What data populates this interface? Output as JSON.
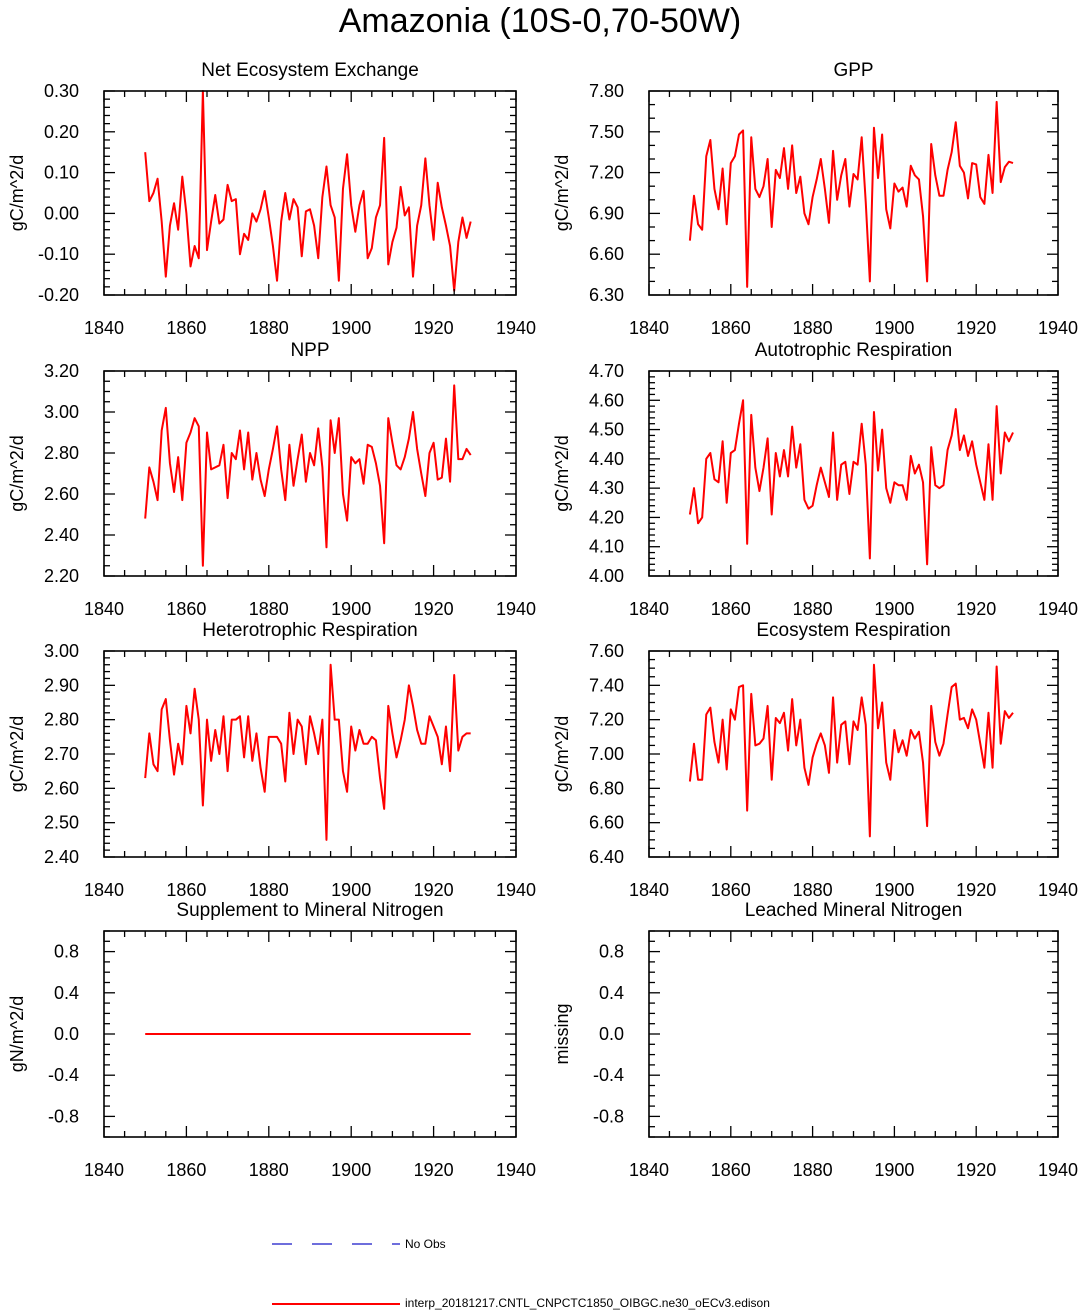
{
  "title": "Amazonia (10S-0,70-50W)",
  "legend": [
    {
      "label": "No Obs",
      "color": "#3f3fd0",
      "style": "dashed"
    },
    {
      "label": "interp_20181217.CNTL_CNPCTC1850_OIBGC.ne30_oECv3.edison",
      "color": "#ff0000",
      "style": "solid"
    }
  ],
  "chart_data": [
    {
      "type": "line",
      "title": "Net Ecosystem Exchange",
      "ylabel": "gC/m^2/d",
      "xlim": [
        1840,
        1940
      ],
      "xticks": [
        1840,
        1860,
        1880,
        1900,
        1920,
        1940
      ],
      "xtick_labels": [
        "1840",
        "1860",
        "1880",
        "1900",
        "1920",
        "1940"
      ],
      "ylim": [
        -0.2,
        0.3
      ],
      "yticks": [
        -0.2,
        -0.1,
        0,
        0.1,
        0.2,
        0.3
      ],
      "ytick_labels": [
        "-0.20",
        "-0.10",
        "0.00",
        "0.10",
        "0.20",
        "0.30"
      ],
      "series": [
        {
          "x_start": 1850,
          "x_step": 1,
          "color": "#ff0000",
          "values": [
            0.15,
            0.03,
            0.05,
            0.085,
            -0.02,
            -0.155,
            -0.03,
            0.025,
            -0.04,
            0.09,
            0.0,
            -0.13,
            -0.08,
            -0.11,
            0.3,
            -0.09,
            -0.02,
            0.045,
            -0.025,
            -0.015,
            0.07,
            0.03,
            0.035,
            -0.1,
            -0.05,
            -0.065,
            0.0,
            -0.02,
            0.01,
            0.055,
            -0.01,
            -0.08,
            -0.165,
            -0.02,
            0.05,
            -0.015,
            0.035,
            0.015,
            -0.105,
            0.005,
            0.01,
            -0.03,
            -0.11,
            0.04,
            0.115,
            0.02,
            -0.01,
            -0.165,
            0.06,
            0.145,
            0.02,
            -0.045,
            0.02,
            0.055,
            -0.11,
            -0.085,
            -0.01,
            0.02,
            0.185,
            -0.125,
            -0.07,
            -0.035,
            0.065,
            -0.005,
            0.015,
            -0.155,
            -0.03,
            0.02,
            0.135,
            0.02,
            -0.065,
            0.075,
            0.015,
            -0.03,
            -0.08,
            -0.19,
            -0.07,
            -0.01,
            -0.06,
            -0.02
          ]
        }
      ]
    },
    {
      "type": "line",
      "title": "GPP",
      "ylabel": "gC/m^2/d",
      "xlim": [
        1840,
        1940
      ],
      "xticks": [
        1840,
        1860,
        1880,
        1900,
        1920,
        1940
      ],
      "xtick_labels": [
        "1840",
        "1860",
        "1880",
        "1900",
        "1920",
        "1940"
      ],
      "ylim": [
        6.3,
        7.8
      ],
      "yticks": [
        6.3,
        6.6,
        6.9,
        7.2,
        7.5,
        7.8
      ],
      "ytick_labels": [
        "6.30",
        "6.60",
        "6.90",
        "7.20",
        "7.50",
        "7.80"
      ],
      "series": [
        {
          "x_start": 1850,
          "x_step": 1,
          "color": "#ff0000",
          "values": [
            6.7,
            7.03,
            6.82,
            6.78,
            7.32,
            7.44,
            7.08,
            6.93,
            7.23,
            6.82,
            7.27,
            7.32,
            7.48,
            7.51,
            6.36,
            7.46,
            7.08,
            7.02,
            7.1,
            7.3,
            6.8,
            7.22,
            7.16,
            7.38,
            7.08,
            7.4,
            7.05,
            7.17,
            6.9,
            6.82,
            7.02,
            7.15,
            7.3,
            7.08,
            6.83,
            7.36,
            7.0,
            7.18,
            7.3,
            6.95,
            7.19,
            7.15,
            7.46,
            6.98,
            6.4,
            7.53,
            7.16,
            7.48,
            6.93,
            6.79,
            7.12,
            7.06,
            7.09,
            6.95,
            7.25,
            7.18,
            7.15,
            6.88,
            6.4,
            7.41,
            7.18,
            7.03,
            7.03,
            7.22,
            7.35,
            7.57,
            7.25,
            7.2,
            7.01,
            7.27,
            7.26,
            7.02,
            6.97,
            7.33,
            7.05,
            7.72,
            7.13,
            7.24,
            7.28,
            7.27
          ]
        }
      ]
    },
    {
      "type": "line",
      "title": "NPP",
      "ylabel": "gC/m^2/d",
      "xlim": [
        1840,
        1940
      ],
      "xticks": [
        1840,
        1860,
        1880,
        1900,
        1920,
        1940
      ],
      "xtick_labels": [
        "1840",
        "1860",
        "1880",
        "1900",
        "1920",
        "1940"
      ],
      "ylim": [
        2.2,
        3.2
      ],
      "yticks": [
        2.2,
        2.4,
        2.6,
        2.8,
        3.0,
        3.2
      ],
      "ytick_labels": [
        "2.20",
        "2.40",
        "2.60",
        "2.80",
        "3.00",
        "3.20"
      ],
      "series": [
        {
          "x_start": 1850,
          "x_step": 1,
          "color": "#ff0000",
          "values": [
            2.48,
            2.73,
            2.66,
            2.57,
            2.91,
            3.02,
            2.75,
            2.61,
            2.78,
            2.57,
            2.85,
            2.9,
            2.97,
            2.93,
            2.25,
            2.9,
            2.72,
            2.73,
            2.74,
            2.84,
            2.58,
            2.8,
            2.77,
            2.91,
            2.72,
            2.9,
            2.67,
            2.8,
            2.67,
            2.59,
            2.72,
            2.82,
            2.93,
            2.72,
            2.57,
            2.84,
            2.64,
            2.77,
            2.89,
            2.66,
            2.8,
            2.74,
            2.92,
            2.73,
            2.34,
            2.96,
            2.8,
            2.97,
            2.6,
            2.47,
            2.78,
            2.75,
            2.77,
            2.65,
            2.84,
            2.83,
            2.75,
            2.64,
            2.36,
            2.97,
            2.85,
            2.74,
            2.72,
            2.78,
            2.87,
            3.0,
            2.82,
            2.7,
            2.59,
            2.8,
            2.85,
            2.67,
            2.68,
            2.87,
            2.66,
            3.13,
            2.77,
            2.77,
            2.82,
            2.79
          ]
        }
      ]
    },
    {
      "type": "line",
      "title": "Autotrophic Respiration",
      "ylabel": "gC/m^2/d",
      "xlim": [
        1840,
        1940
      ],
      "xticks": [
        1840,
        1860,
        1880,
        1900,
        1920,
        1940
      ],
      "xtick_labels": [
        "1840",
        "1860",
        "1880",
        "1900",
        "1920",
        "1940"
      ],
      "ylim": [
        4.0,
        4.7
      ],
      "yticks": [
        4.0,
        4.1,
        4.2,
        4.3,
        4.4,
        4.5,
        4.6,
        4.7
      ],
      "ytick_labels": [
        "4.00",
        "4.10",
        "4.20",
        "4.30",
        "4.40",
        "4.50",
        "4.60",
        "4.70"
      ],
      "series": [
        {
          "x_start": 1850,
          "x_step": 1,
          "color": "#ff0000",
          "values": [
            4.21,
            4.3,
            4.18,
            4.2,
            4.4,
            4.42,
            4.33,
            4.32,
            4.46,
            4.25,
            4.42,
            4.43,
            4.52,
            4.6,
            4.11,
            4.55,
            4.37,
            4.29,
            4.37,
            4.47,
            4.21,
            4.42,
            4.34,
            4.43,
            4.34,
            4.51,
            4.37,
            4.45,
            4.26,
            4.23,
            4.24,
            4.31,
            4.37,
            4.32,
            4.27,
            4.49,
            4.26,
            4.38,
            4.39,
            4.28,
            4.39,
            4.38,
            4.52,
            4.38,
            4.06,
            4.56,
            4.36,
            4.5,
            4.3,
            4.25,
            4.32,
            4.31,
            4.31,
            4.26,
            4.41,
            4.35,
            4.38,
            4.32,
            4.04,
            4.44,
            4.31,
            4.3,
            4.31,
            4.43,
            4.48,
            4.57,
            4.43,
            4.48,
            4.41,
            4.46,
            4.38,
            4.32,
            4.26,
            4.45,
            4.26,
            4.58,
            4.35,
            4.49,
            4.46,
            4.49
          ]
        }
      ]
    },
    {
      "type": "line",
      "title": "Heterotrophic Respiration",
      "ylabel": "gC/m^2/d",
      "xlim": [
        1840,
        1940
      ],
      "xticks": [
        1840,
        1860,
        1880,
        1900,
        1920,
        1940
      ],
      "xtick_labels": [
        "1840",
        "1860",
        "1880",
        "1900",
        "1920",
        "1940"
      ],
      "ylim": [
        2.4,
        3.0
      ],
      "yticks": [
        2.4,
        2.5,
        2.6,
        2.7,
        2.8,
        2.9,
        3.0
      ],
      "ytick_labels": [
        "2.40",
        "2.50",
        "2.60",
        "2.70",
        "2.80",
        "2.90",
        "3.00"
      ],
      "series": [
        {
          "x_start": 1850,
          "x_step": 1,
          "color": "#ff0000",
          "values": [
            2.63,
            2.76,
            2.67,
            2.65,
            2.83,
            2.86,
            2.74,
            2.64,
            2.73,
            2.67,
            2.84,
            2.76,
            2.89,
            2.8,
            2.55,
            2.8,
            2.68,
            2.77,
            2.7,
            2.81,
            2.65,
            2.8,
            2.8,
            2.81,
            2.69,
            2.81,
            2.68,
            2.76,
            2.66,
            2.59,
            2.75,
            2.75,
            2.75,
            2.73,
            2.62,
            2.82,
            2.7,
            2.8,
            2.78,
            2.67,
            2.81,
            2.76,
            2.7,
            2.8,
            2.45,
            2.96,
            2.8,
            2.8,
            2.65,
            2.59,
            2.78,
            2.71,
            2.77,
            2.73,
            2.73,
            2.75,
            2.74,
            2.63,
            2.54,
            2.84,
            2.76,
            2.69,
            2.74,
            2.8,
            2.9,
            2.84,
            2.77,
            2.73,
            2.73,
            2.81,
            2.78,
            2.75,
            2.67,
            2.78,
            2.65,
            2.93,
            2.71,
            2.75,
            2.76,
            2.76
          ]
        }
      ]
    },
    {
      "type": "line",
      "title": "Ecosystem Respiration",
      "ylabel": "gC/m^2/d",
      "xlim": [
        1840,
        1940
      ],
      "xticks": [
        1840,
        1860,
        1880,
        1900,
        1920,
        1940
      ],
      "xtick_labels": [
        "1840",
        "1860",
        "1880",
        "1900",
        "1920",
        "1940"
      ],
      "ylim": [
        6.4,
        7.6
      ],
      "yticks": [
        6.4,
        6.6,
        6.8,
        7.0,
        7.2,
        7.4,
        7.6
      ],
      "ytick_labels": [
        "6.40",
        "6.60",
        "6.80",
        "7.00",
        "7.20",
        "7.40",
        "7.60"
      ],
      "series": [
        {
          "x_start": 1850,
          "x_step": 1,
          "color": "#ff0000",
          "values": [
            6.84,
            7.06,
            6.85,
            6.85,
            7.23,
            7.27,
            7.07,
            6.95,
            7.2,
            6.91,
            7.26,
            7.2,
            7.39,
            7.4,
            6.67,
            7.35,
            7.05,
            7.06,
            7.09,
            7.28,
            6.85,
            7.21,
            7.18,
            7.24,
            7.02,
            7.32,
            7.05,
            7.2,
            6.92,
            6.82,
            6.98,
            7.06,
            7.12,
            7.05,
            6.89,
            7.33,
            6.95,
            7.17,
            7.19,
            6.94,
            7.19,
            7.14,
            7.33,
            7.17,
            6.52,
            7.52,
            7.15,
            7.3,
            6.95,
            6.85,
            7.14,
            7.01,
            7.08,
            6.99,
            7.14,
            7.09,
            7.13,
            6.95,
            6.58,
            7.28,
            7.07,
            6.99,
            7.06,
            7.23,
            7.39,
            7.41,
            7.2,
            7.21,
            7.15,
            7.26,
            7.2,
            7.06,
            6.92,
            7.24,
            6.92,
            7.51,
            7.06,
            7.25,
            7.21,
            7.24
          ]
        }
      ]
    },
    {
      "type": "line",
      "title": "Supplement to Mineral Nitrogen",
      "ylabel": "gN/m^2/d",
      "xlim": [
        1840,
        1940
      ],
      "xticks": [
        1840,
        1860,
        1880,
        1900,
        1920,
        1940
      ],
      "xtick_labels": [
        "1840",
        "1860",
        "1880",
        "1900",
        "1920",
        "1940"
      ],
      "ylim": [
        -1.0,
        1.0
      ],
      "yticks": [
        -0.8,
        -0.4,
        0.0,
        0.4,
        0.8
      ],
      "ytick_labels": [
        "-0.8",
        "-0.4",
        "0.0",
        "0.4",
        "0.8"
      ],
      "series": [
        {
          "x_start": 1850,
          "x_step": 1,
          "color": "#ff0000",
          "values": [
            0,
            0,
            0,
            0,
            0,
            0,
            0,
            0,
            0,
            0,
            0,
            0,
            0,
            0,
            0,
            0,
            0,
            0,
            0,
            0,
            0,
            0,
            0,
            0,
            0,
            0,
            0,
            0,
            0,
            0,
            0,
            0,
            0,
            0,
            0,
            0,
            0,
            0,
            0,
            0,
            0,
            0,
            0,
            0,
            0,
            0,
            0,
            0,
            0,
            0,
            0,
            0,
            0,
            0,
            0,
            0,
            0,
            0,
            0,
            0,
            0,
            0,
            0,
            0,
            0,
            0,
            0,
            0,
            0,
            0,
            0,
            0,
            0,
            0,
            0,
            0,
            0,
            0,
            0,
            0
          ]
        }
      ]
    },
    {
      "type": "line",
      "title": "Leached Mineral Nitrogen",
      "ylabel": "missing",
      "xlim": [
        1840,
        1940
      ],
      "xticks": [
        1840,
        1860,
        1880,
        1900,
        1920,
        1940
      ],
      "xtick_labels": [
        "1840",
        "1860",
        "1880",
        "1900",
        "1920",
        "1940"
      ],
      "ylim": [
        -1.0,
        1.0
      ],
      "yticks": [
        -0.8,
        -0.4,
        0.0,
        0.4,
        0.8
      ],
      "ytick_labels": [
        "-0.8",
        "-0.4",
        "0.0",
        "0.4",
        "0.8"
      ],
      "series": []
    }
  ]
}
